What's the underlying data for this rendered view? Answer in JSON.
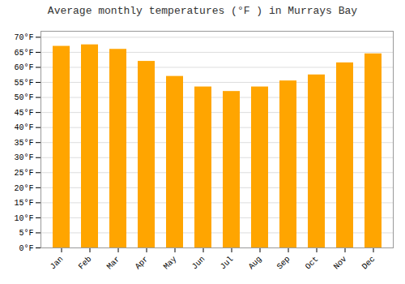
{
  "chart_data": {
    "type": "bar",
    "title": "Average monthly temperatures (°F ) in Murrays Bay",
    "categories": [
      "Jan",
      "Feb",
      "Mar",
      "Apr",
      "May",
      "Jun",
      "Jul",
      "Aug",
      "Sep",
      "Oct",
      "Nov",
      "Dec"
    ],
    "values": [
      67.0,
      67.5,
      66.0,
      62.0,
      57.0,
      53.5,
      52.0,
      53.5,
      55.5,
      57.5,
      61.5,
      64.5
    ],
    "color": "#FFA500",
    "ylim": [
      0,
      72
    ],
    "yticks": [
      {
        "value": 0,
        "label": "0°F"
      },
      {
        "value": 5,
        "label": "5°F"
      },
      {
        "value": 10,
        "label": "10°F"
      },
      {
        "value": 15,
        "label": "15°F"
      },
      {
        "value": 20,
        "label": "20°F"
      },
      {
        "value": 25,
        "label": "25°F"
      },
      {
        "value": 30,
        "label": "30°F"
      },
      {
        "value": 35,
        "label": "35°F"
      },
      {
        "value": 40,
        "label": "40°F"
      },
      {
        "value": 45,
        "label": "45°F"
      },
      {
        "value": 50,
        "label": "50°F"
      },
      {
        "value": 55,
        "label": "55°F"
      },
      {
        "value": 60,
        "label": "60°F"
      },
      {
        "value": 65,
        "label": "65°F"
      },
      {
        "value": 70,
        "label": "70°F"
      }
    ],
    "grid": true
  }
}
